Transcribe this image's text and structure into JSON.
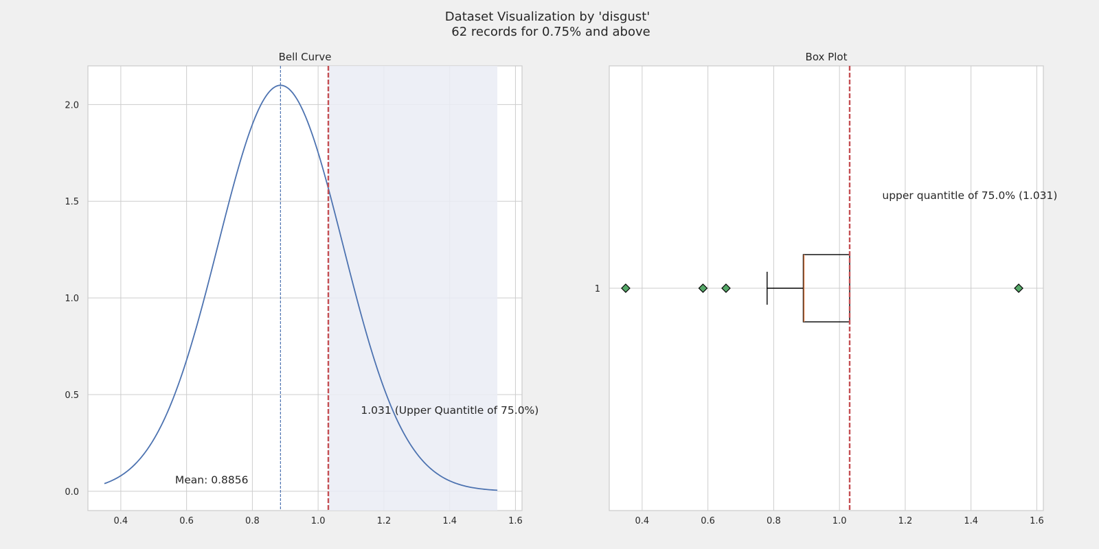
{
  "figure": {
    "title_line1": "Dataset Visualization by 'disgust'",
    "title_line2": "62 records for 0.75% and above"
  },
  "colors": {
    "background": "#f0f0f0",
    "axes_face": "#ffffff",
    "grid": "#cccccc",
    "curve": "#4c72b0",
    "mean_line": "#4c72b0",
    "quantile_line": "#c44e52",
    "shade": "#eaecf5",
    "box": "#000000",
    "median": "#dd8452",
    "flier_fill": "#55a868"
  },
  "chart_data": [
    {
      "type": "line",
      "title": "Bell Curve",
      "xlim": [
        0.3,
        1.62
      ],
      "ylim": [
        -0.1,
        2.2
      ],
      "xticks": [
        0.4,
        0.6,
        0.8,
        1.0,
        1.2,
        1.4,
        1.6
      ],
      "xtick_labels": [
        "0.4",
        "0.6",
        "0.8",
        "1.0",
        "1.2",
        "1.4",
        "1.6"
      ],
      "yticks": [
        0.0,
        0.5,
        1.0,
        1.5,
        2.0
      ],
      "ytick_labels": [
        "0.0",
        "0.5",
        "1.0",
        "1.5",
        "2.0"
      ],
      "grid": true,
      "curve": {
        "distribution": "normal",
        "mean": 0.8856,
        "std": 0.19,
        "x_range": [
          0.35,
          1.545
        ]
      },
      "mean_line": {
        "x": 0.8856,
        "style": "dashed"
      },
      "quantile_line": {
        "x": 1.031,
        "style": "dashed"
      },
      "shaded_region": {
        "x_start": 1.031,
        "x_end": 1.545
      },
      "annotations": [
        {
          "text": "Mean: 0.8856",
          "x": 0.565,
          "y": 0.04
        },
        {
          "text": "1.031 (Upper Quantitle of 75.0%)",
          "x": 1.13,
          "y": 0.4
        }
      ]
    },
    {
      "type": "box",
      "title": "Box Plot",
      "orientation": "horizontal",
      "xlim": [
        0.3,
        1.62
      ],
      "xticks": [
        0.4,
        0.6,
        0.8,
        1.0,
        1.2,
        1.4,
        1.6
      ],
      "xtick_labels": [
        "0.4",
        "0.6",
        "0.8",
        "1.0",
        "1.2",
        "1.4",
        "1.6"
      ],
      "ytick_labels": [
        "1"
      ],
      "grid": true,
      "box": {
        "whisker_low": 0.78,
        "q1": 0.89,
        "median": 0.89,
        "q3": 1.031,
        "whisker_high": 1.031
      },
      "outliers": [
        0.35,
        0.585,
        0.655,
        1.545
      ],
      "quantile_line": {
        "x": 1.031,
        "style": "dashed"
      },
      "annotations": [
        {
          "text": "upper quantitle of 75.0% (1.031)",
          "x": 1.13
        }
      ]
    }
  ]
}
